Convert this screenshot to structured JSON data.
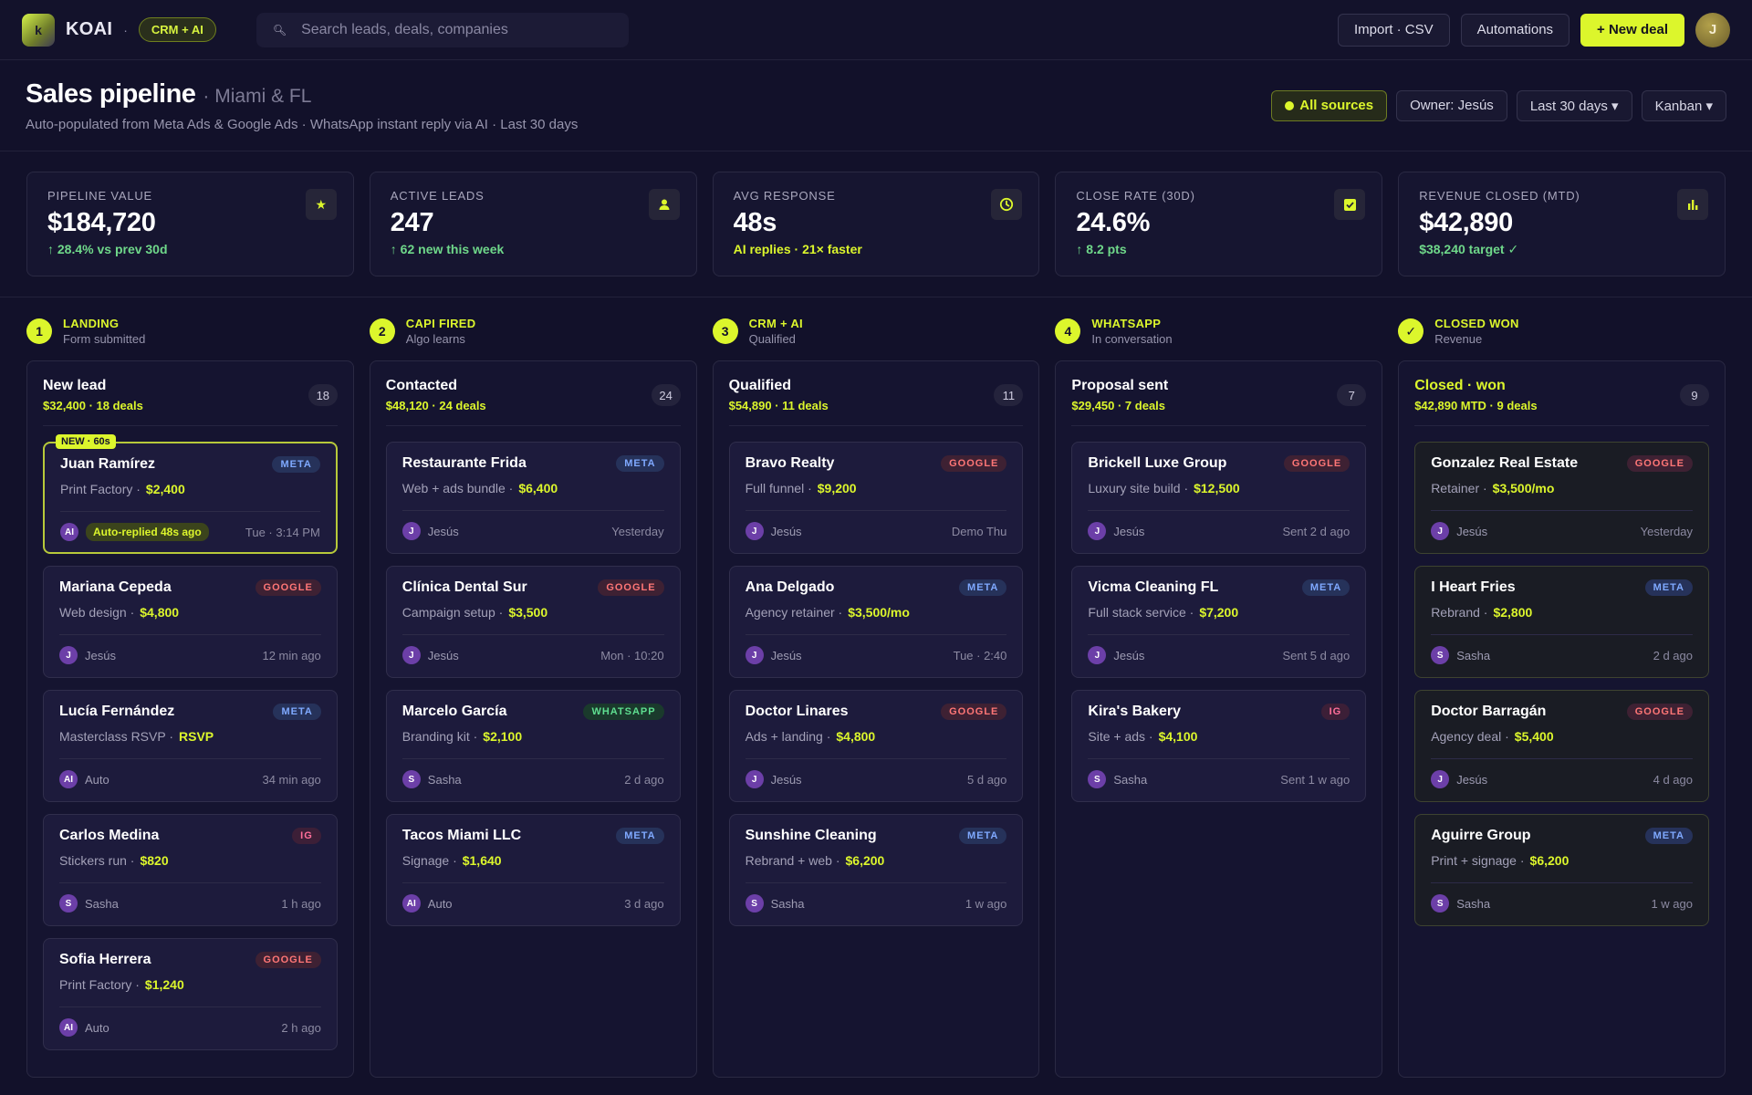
{
  "topbar": {
    "logo_letter": "k",
    "brand": "KOAI",
    "separator": "·",
    "crm_pill": "CRM + AI",
    "search_placeholder": "Search leads, deals, companies",
    "import_label": "Import · CSV",
    "automations_label": "Automations",
    "new_deal_label": "+ New deal",
    "avatar_initial": "J"
  },
  "header": {
    "title": "Sales pipeline",
    "subtitle": "· Miami & FL",
    "description": "Auto-populated from Meta Ads & Google Ads · WhatsApp instant reply via AI · Last 30 days",
    "filters": {
      "sources": "All sources",
      "owner": "Owner: Jesús",
      "range": "Last 30 days ▾",
      "view": "Kanban ▾"
    }
  },
  "metrics": [
    {
      "label": "PIPELINE VALUE",
      "value": "$184,720",
      "delta": "↑ 28.4% vs prev 30d",
      "icon": "star-icon",
      "glyph": "★"
    },
    {
      "label": "ACTIVE LEADS",
      "value": "247",
      "delta": "↑ 62 new this week",
      "icon": "user-icon",
      "glyph": "👤"
    },
    {
      "label": "AVG RESPONSE",
      "value": "48s",
      "delta": "AI replies · 21× faster",
      "icon": "clock-icon",
      "glyph": "◷"
    },
    {
      "label": "CLOSE RATE (30D)",
      "value": "24.6%",
      "delta": "↑ 8.2 pts",
      "icon": "check-icon",
      "glyph": "☑"
    },
    {
      "label": "REVENUE CLOSED (MTD)",
      "value": "$42,890",
      "delta": "$38,240 target ✓",
      "icon": "bar-chart-icon",
      "glyph": "▮"
    }
  ],
  "stages": [
    {
      "num": "1",
      "name": "LANDING",
      "sub": "Form submitted"
    },
    {
      "num": "2",
      "name": "CAPI FIRED",
      "sub": "Algo learns"
    },
    {
      "num": "3",
      "name": "CRM + AI",
      "sub": "Qualified"
    },
    {
      "num": "4",
      "name": "WHATSAPP",
      "sub": "In conversation"
    },
    {
      "num": "✓",
      "name": "CLOSED WON",
      "sub": "Revenue"
    }
  ],
  "lanes": [
    {
      "title": "New lead",
      "stats": "$32,400 · 18 deals",
      "count": "18",
      "cards": [
        {
          "name": "Juan Ramírez",
          "source": "META",
          "desc": "Print Factory ·",
          "amount": "$2,400",
          "owner_initial": "AI",
          "owner": "",
          "auto_pill": "Auto-replied 48s ago",
          "time": "Tue · 3:14 PM",
          "new_tag": "NEW · 60s"
        },
        {
          "name": "Mariana Cepeda",
          "source": "GOOGLE",
          "desc": "Web design ·",
          "amount": "$4,800",
          "owner_initial": "J",
          "owner": "Jesús",
          "time": "12 min ago"
        },
        {
          "name": "Lucía Fernández",
          "source": "META",
          "desc": "Masterclass RSVP ·",
          "amount": "RSVP",
          "owner_initial": "AI",
          "owner": "Auto",
          "time": "34 min ago"
        },
        {
          "name": "Carlos Medina",
          "source": "IG",
          "desc": "Stickers run ·",
          "amount": "$820",
          "owner_initial": "S",
          "owner": "Sasha",
          "time": "1 h ago"
        },
        {
          "name": "Sofia Herrera",
          "source": "GOOGLE",
          "desc": "Print Factory ·",
          "amount": "$1,240",
          "owner_initial": "AI",
          "owner": "Auto",
          "time": "2 h ago"
        }
      ]
    },
    {
      "title": "Contacted",
      "stats": "$48,120 · 24 deals",
      "count": "24",
      "cards": [
        {
          "name": "Restaurante Frida",
          "source": "META",
          "desc": "Web + ads bundle ·",
          "amount": "$6,400",
          "owner_initial": "J",
          "owner": "Jesús",
          "time": "Yesterday"
        },
        {
          "name": "Clínica Dental Sur",
          "source": "GOOGLE",
          "desc": "Campaign setup ·",
          "amount": "$3,500",
          "owner_initial": "J",
          "owner": "Jesús",
          "time": "Mon · 10:20"
        },
        {
          "name": "Marcelo García",
          "source": "WHATSAPP",
          "desc": "Branding kit ·",
          "amount": "$2,100",
          "owner_initial": "S",
          "owner": "Sasha",
          "time": "2 d ago"
        },
        {
          "name": "Tacos Miami LLC",
          "source": "META",
          "desc": "Signage ·",
          "amount": "$1,640",
          "owner_initial": "AI",
          "owner": "Auto",
          "time": "3 d ago"
        }
      ]
    },
    {
      "title": "Qualified",
      "stats": "$54,890 · 11 deals",
      "count": "11",
      "cards": [
        {
          "name": "Bravo Realty",
          "source": "GOOGLE",
          "desc": "Full funnel ·",
          "amount": "$9,200",
          "owner_initial": "J",
          "owner": "Jesús",
          "time": "Demo Thu"
        },
        {
          "name": "Ana Delgado",
          "source": "META",
          "desc": "Agency retainer ·",
          "amount": "$3,500/mo",
          "owner_initial": "J",
          "owner": "Jesús",
          "time": "Tue · 2:40"
        },
        {
          "name": "Doctor Linares",
          "source": "GOOGLE",
          "desc": "Ads + landing ·",
          "amount": "$4,800",
          "owner_initial": "J",
          "owner": "Jesús",
          "time": "5 d ago"
        },
        {
          "name": "Sunshine Cleaning",
          "source": "META",
          "desc": "Rebrand + web ·",
          "amount": "$6,200",
          "owner_initial": "S",
          "owner": "Sasha",
          "time": "1 w ago"
        }
      ]
    },
    {
      "title": "Proposal sent",
      "stats": "$29,450 · 7 deals",
      "count": "7",
      "cards": [
        {
          "name": "Brickell Luxe Group",
          "source": "GOOGLE",
          "desc": "Luxury site build ·",
          "amount": "$12,500",
          "owner_initial": "J",
          "owner": "Jesús",
          "time": "Sent 2 d ago"
        },
        {
          "name": "Vicma Cleaning FL",
          "source": "META",
          "desc": "Full stack service ·",
          "amount": "$7,200",
          "owner_initial": "J",
          "owner": "Jesús",
          "time": "Sent 5 d ago"
        },
        {
          "name": "Kira's Bakery",
          "source": "IG",
          "desc": "Site + ads ·",
          "amount": "$4,100",
          "owner_initial": "S",
          "owner": "Sasha",
          "time": "Sent 1 w ago"
        }
      ]
    },
    {
      "title": "Closed · won",
      "stats": "$42,890 MTD · 9 deals",
      "count": "9",
      "cards": [
        {
          "name": "Gonzalez Real Estate",
          "source": "GOOGLE",
          "desc": "Retainer ·",
          "amount": "$3,500/mo",
          "owner_initial": "J",
          "owner": "Jesús",
          "time": "Yesterday"
        },
        {
          "name": "I Heart Fries",
          "source": "META",
          "desc": "Rebrand ·",
          "amount": "$2,800",
          "owner_initial": "S",
          "owner": "Sasha",
          "time": "2 d ago"
        },
        {
          "name": "Doctor Barragán",
          "source": "GOOGLE",
          "desc": "Agency deal ·",
          "amount": "$5,400",
          "owner_initial": "J",
          "owner": "Jesús",
          "time": "4 d ago"
        },
        {
          "name": "Aguirre Group",
          "source": "META",
          "desc": "Print + signage ·",
          "amount": "$6,200",
          "owner_initial": "S",
          "owner": "Sasha",
          "time": "1 w ago"
        }
      ]
    }
  ]
}
